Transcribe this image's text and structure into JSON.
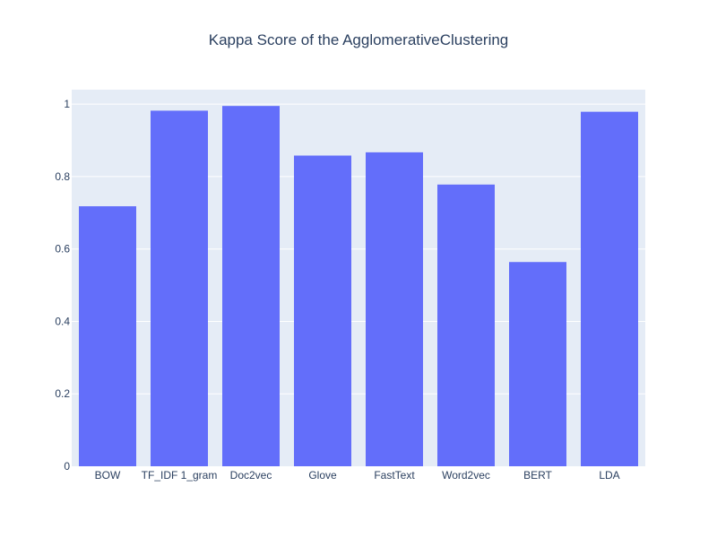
{
  "chart_data": {
    "type": "bar",
    "title": "Kappa Score of the AgglomerativeClustering",
    "xlabel": "",
    "ylabel": "",
    "categories": [
      "BOW",
      "TF_IDF 1_gram",
      "Doc2vec",
      "Glove",
      "FastText",
      "Word2vec",
      "BERT",
      "LDA"
    ],
    "values": [
      0.718,
      0.982,
      0.995,
      0.858,
      0.867,
      0.778,
      0.564,
      0.979
    ],
    "ylim": [
      0,
      1.04
    ],
    "yticks": [
      0,
      0.2,
      0.4,
      0.6,
      0.8,
      1
    ],
    "ytick_labels": [
      "0",
      "0.2",
      "0.4",
      "0.6",
      "0.8",
      "1"
    ],
    "grid": true,
    "colors": {
      "bar": "#636efa",
      "plot_background": "#e5ecf6",
      "grid": "#ffffff",
      "text": "#2a3f5f"
    }
  }
}
